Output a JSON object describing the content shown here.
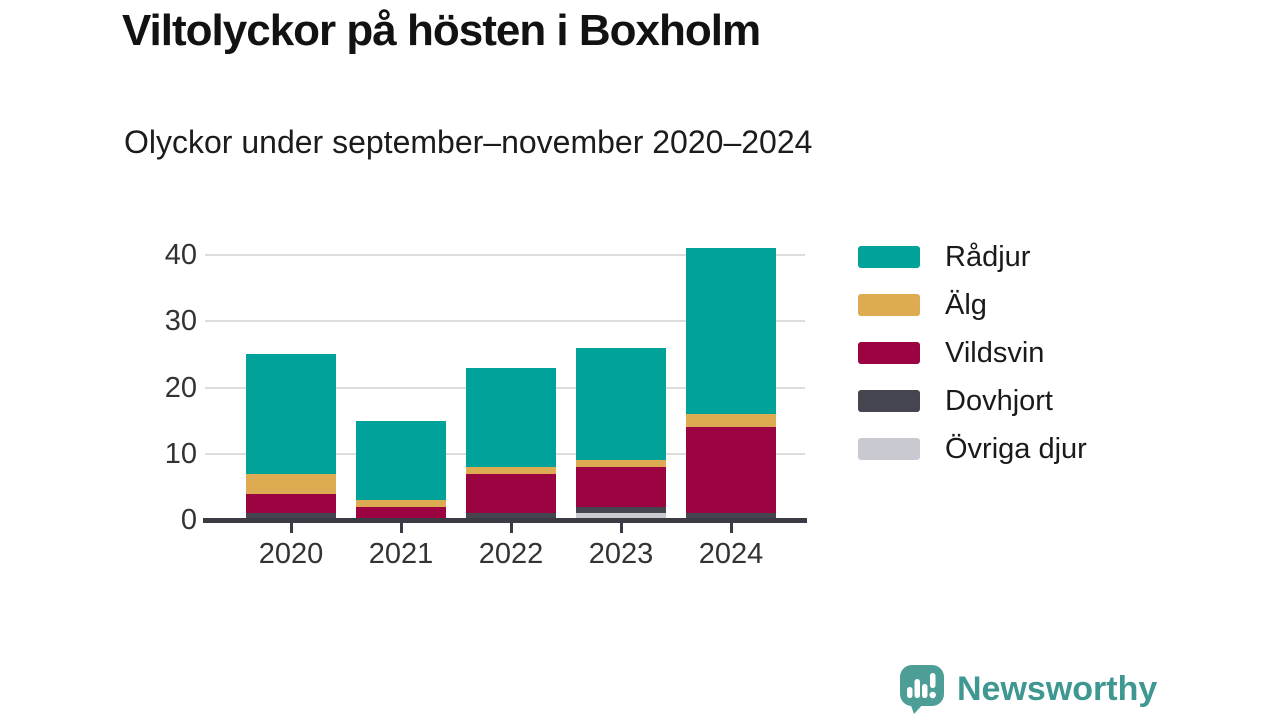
{
  "header": {
    "title": "Viltolyckor på hösten i Boxholm",
    "subtitle": "Olyckor under september–november 2020–2024"
  },
  "chart_data": {
    "type": "bar",
    "stacked": true,
    "title": "Viltolyckor på hösten i Boxholm",
    "subtitle": "Olyckor under september–november 2020–2024",
    "categories": [
      "2020",
      "2021",
      "2022",
      "2023",
      "2024"
    ],
    "series": [
      {
        "name": "Rådjur",
        "color": "#00A29A",
        "values": [
          18,
          12,
          15,
          17,
          25
        ]
      },
      {
        "name": "Älg",
        "color": "#DCAB52",
        "values": [
          3,
          1,
          1,
          1,
          2
        ]
      },
      {
        "name": "Vildsvin",
        "color": "#9C0341",
        "values": [
          3,
          2,
          6,
          6,
          13
        ]
      },
      {
        "name": "Dovhjort",
        "color": "#45454F",
        "values": [
          1,
          0,
          1,
          1,
          1
        ]
      },
      {
        "name": "Övriga djur",
        "color": "#C9C9D1",
        "values": [
          0,
          0,
          0,
          1,
          0
        ]
      }
    ],
    "totals": [
      25,
      15,
      23,
      26,
      41
    ],
    "xlabel": "",
    "ylabel": "",
    "y_ticks": [
      0,
      10,
      20,
      30,
      40
    ],
    "ylim": [
      0,
      41
    ],
    "grid": "horizontal",
    "legend_position": "right",
    "stack_order": "first-series-on-top"
  },
  "colors": {
    "axis": "#3B3B45",
    "gridline": "#DDDDDE",
    "tick_label": "#333333",
    "legend_label": "#1A1A1A",
    "brand_teal": "#3E9790",
    "logo_fill": "#4D9E97"
  },
  "footer": {
    "brand": "Newsworthy",
    "logo_icon": "newsworthy-speech-bubble-chart-icon"
  }
}
